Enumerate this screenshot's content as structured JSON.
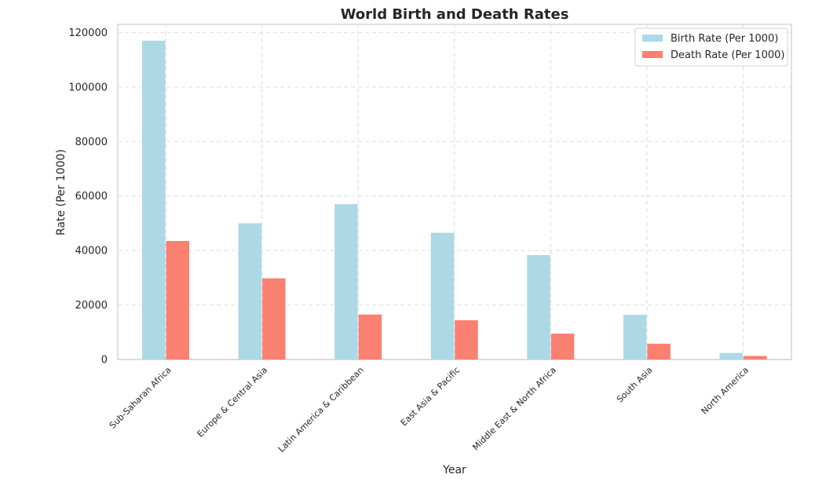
{
  "chart_data": {
    "type": "bar",
    "title": "World Birth and Death Rates",
    "xlabel": "Year",
    "ylabel": "Rate (Per 1000)",
    "ylim": [
      0,
      123000
    ],
    "yticks": [
      0,
      20000,
      40000,
      60000,
      80000,
      100000,
      120000
    ],
    "ytick_labels": [
      "0",
      "20000",
      "40000",
      "60000",
      "80000",
      "100000",
      "120000"
    ],
    "grid": true,
    "legend_position": "top-right",
    "categories": [
      "Sub-Saharan Africa",
      "Europe & Central Asia",
      "Latin America & Caribbean",
      "East Asia & Pacific",
      "Middle East & North Africa",
      "South Asia",
      "North America"
    ],
    "series": [
      {
        "name": "Birth Rate (Per 1000)",
        "color": "#add8e6",
        "values": [
          117000,
          50000,
          57000,
          46500,
          38300,
          16400,
          2400
        ]
      },
      {
        "name": "Death Rate (Per 1000)",
        "color": "#fa8072",
        "values": [
          43500,
          29800,
          16500,
          14400,
          9500,
          5800,
          1300
        ]
      }
    ]
  }
}
